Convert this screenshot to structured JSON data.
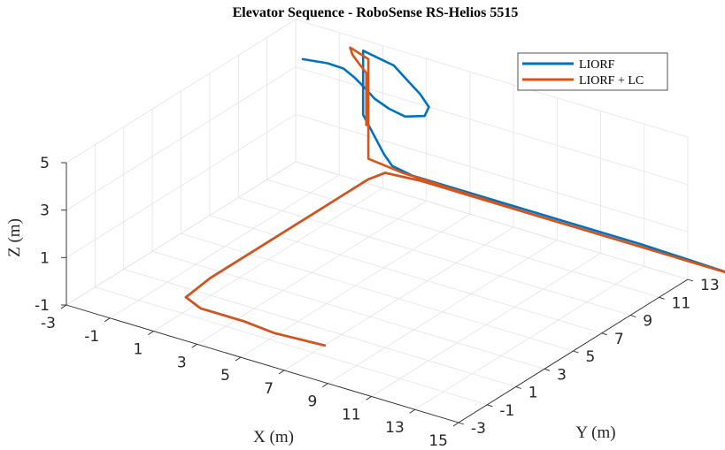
{
  "chart_data": {
    "type": "line",
    "title": "Elevator Sequence - RoboSense RS-Helios 5515",
    "xlabel": "X (m)",
    "ylabel": "Y (m)",
    "zlabel": "Z (m)",
    "xlim": [
      -3,
      15
    ],
    "ylim": [
      -3,
      13
    ],
    "zlim": [
      -1,
      5
    ],
    "xticks": [
      "-3",
      "-1",
      "1",
      "3",
      "5",
      "7",
      "9",
      "11",
      "13",
      "15"
    ],
    "yticks": [
      "-3",
      "-1",
      "1",
      "3",
      "5",
      "7",
      "9",
      "11",
      "13"
    ],
    "zticks": [
      "-1",
      "1",
      "3",
      "5"
    ],
    "grid": true,
    "legend_position": "top-right",
    "series": [
      {
        "name": "LIORF",
        "color": "#0072BD",
        "points": [
          [
            8.2,
            -2.0,
            0.0
          ],
          [
            6.0,
            -2.2,
            0.0
          ],
          [
            4.5,
            -2.0,
            0.0
          ],
          [
            2.5,
            -2.0,
            0.0
          ],
          [
            1.5,
            -1.5,
            0.0
          ],
          [
            1.3,
            0.5,
            0.0
          ],
          [
            1.3,
            4.0,
            0.0
          ],
          [
            1.3,
            8.0,
            0.0
          ],
          [
            1.3,
            11.5,
            0.0
          ],
          [
            1.5,
            12.4,
            0.0
          ],
          [
            3.0,
            12.6,
            0.0
          ],
          [
            6.0,
            12.6,
            0.0
          ],
          [
            10.0,
            12.6,
            0.0
          ],
          [
            15.0,
            12.6,
            0.0
          ],
          [
            17.7,
            12.6,
            0.0
          ],
          [
            13.0,
            12.8,
            0.0
          ],
          [
            8.0,
            12.8,
            0.0
          ],
          [
            4.0,
            12.8,
            0.0
          ],
          [
            2.5,
            12.8,
            0.0
          ],
          [
            1.5,
            12.9,
            0.1
          ],
          [
            0.8,
            13.4,
            0.2
          ],
          [
            -0.3,
            13.6,
            1.5
          ],
          [
            -0.3,
            13.6,
            3.0
          ],
          [
            -0.3,
            13.6,
            4.2
          ],
          [
            0.5,
            13.4,
            4.2
          ],
          [
            1.5,
            13.0,
            4.3
          ],
          [
            2.5,
            12.4,
            4.2
          ],
          [
            3.5,
            11.8,
            4.1
          ],
          [
            4.3,
            11.2,
            4.0
          ],
          [
            4.5,
            10.6,
            3.9
          ],
          [
            3.8,
            10.3,
            3.8
          ],
          [
            2.8,
            10.7,
            3.7
          ],
          [
            1.6,
            11.5,
            3.5
          ],
          [
            0.6,
            12.3,
            3.4
          ],
          [
            -0.3,
            13.0,
            3.3
          ],
          [
            -1.2,
            13.6,
            3.2
          ],
          [
            -2.2,
            14.0,
            3.0
          ],
          [
            -3.4,
            14.1,
            2.8
          ]
        ]
      },
      {
        "name": "LIORF + LC",
        "color": "#D95319",
        "points": [
          [
            8.2,
            -2.0,
            0.0
          ],
          [
            6.0,
            -2.2,
            0.0
          ],
          [
            4.5,
            -2.0,
            0.0
          ],
          [
            2.5,
            -2.0,
            0.0
          ],
          [
            1.5,
            -1.5,
            0.0
          ],
          [
            1.3,
            0.5,
            0.0
          ],
          [
            1.3,
            4.0,
            0.0
          ],
          [
            1.3,
            8.0,
            0.0
          ],
          [
            1.3,
            11.5,
            0.0
          ],
          [
            1.5,
            12.4,
            0.0
          ],
          [
            3.0,
            12.6,
            0.0
          ],
          [
            6.0,
            12.6,
            0.0
          ],
          [
            10.0,
            12.6,
            0.0
          ],
          [
            15.0,
            12.6,
            0.0
          ],
          [
            17.7,
            12.6,
            0.0
          ],
          [
            13.0,
            12.6,
            0.0
          ],
          [
            8.0,
            12.6,
            0.0
          ],
          [
            4.0,
            12.7,
            0.0
          ],
          [
            2.0,
            12.8,
            0.0
          ],
          [
            0.4,
            12.9,
            0.1
          ],
          [
            0.4,
            12.9,
            1.5
          ],
          [
            0.4,
            12.9,
            3.0
          ],
          [
            0.4,
            12.9,
            4.3
          ],
          [
            -0.4,
            13.1,
            4.4
          ],
          [
            -0.5,
            13.0,
            4.5
          ],
          [
            -0.2,
            12.7,
            4.4
          ],
          [
            0.4,
            12.3,
            4.3
          ],
          [
            0.9,
            12.0,
            4.2
          ],
          [
            0.9,
            12.0,
            3.2
          ],
          [
            0.9,
            12.0,
            2.0
          ]
        ]
      }
    ]
  }
}
